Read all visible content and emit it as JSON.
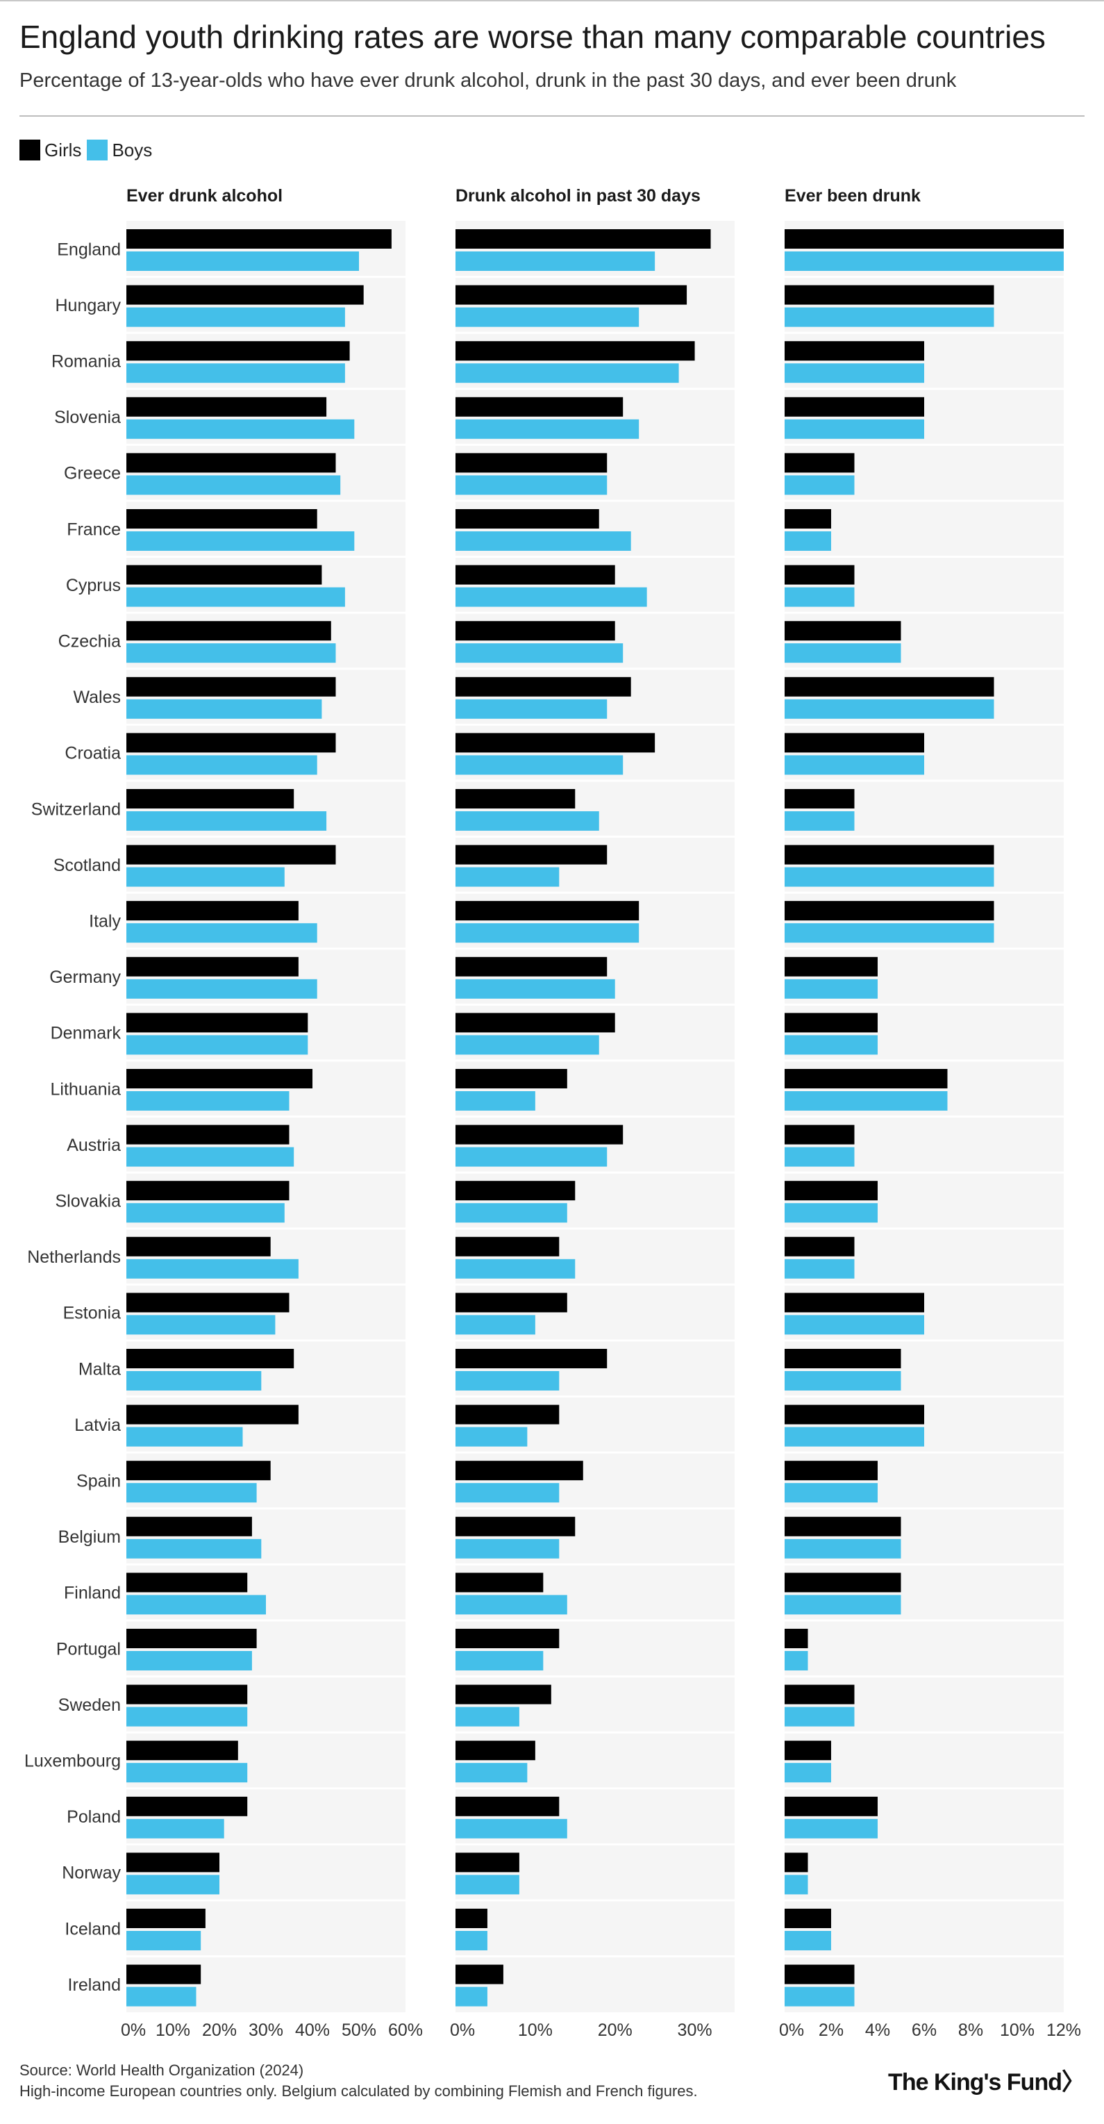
{
  "title": "England youth drinking rates are worse than many comparable countries",
  "subtitle": "Percentage of 13-year-olds who have ever drunk alcohol, drunk in the past 30 days, and ever been drunk",
  "legend": [
    {
      "label": "Girls",
      "color": "#000000"
    },
    {
      "label": "Boys",
      "color": "#44bfe9"
    }
  ],
  "footer": {
    "source": "Source: World Health Organization (2024)",
    "note": "High-income European countries only. Belgium calculated by combining Flemish and French figures."
  },
  "logo": "The King's Fund",
  "logo_symbol": "〉",
  "chart_data": {
    "type": "bar",
    "orientation": "horizontal",
    "categories": [
      "England",
      "Hungary",
      "Romania",
      "Slovenia",
      "Greece",
      "France",
      "Cyprus",
      "Czechia",
      "Wales",
      "Croatia",
      "Switzerland",
      "Scotland",
      "Italy",
      "Germany",
      "Denmark",
      "Lithuania",
      "Austria",
      "Slovakia",
      "Netherlands",
      "Estonia",
      "Malta",
      "Latvia",
      "Spain",
      "Belgium",
      "Finland",
      "Portugal",
      "Sweden",
      "Luxembourg",
      "Poland",
      "Norway",
      "Iceland",
      "Ireland"
    ],
    "panels": [
      {
        "title": "Ever drunk alcohol",
        "xlim": [
          0,
          60
        ],
        "ticks": [
          "0%",
          "10%",
          "20%",
          "30%",
          "40%",
          "50%",
          "60%"
        ],
        "series": [
          {
            "name": "Girls",
            "values": [
              57,
              51,
              48,
              43,
              45,
              41,
              42,
              44,
              45,
              45,
              36,
              45,
              37,
              37,
              39,
              40,
              35,
              35,
              31,
              35,
              36,
              37,
              31,
              27,
              26,
              28,
              26,
              24,
              26,
              20,
              17,
              16
            ]
          },
          {
            "name": "Boys",
            "values": [
              50,
              47,
              47,
              49,
              46,
              49,
              47,
              45,
              42,
              41,
              43,
              34,
              41,
              41,
              39,
              35,
              36,
              34,
              37,
              32,
              29,
              25,
              28,
              29,
              30,
              27,
              26,
              26,
              21,
              20,
              16,
              15
            ]
          }
        ]
      },
      {
        "title": "Drunk alcohol in past 30 days",
        "xlim": [
          0,
          35
        ],
        "ticks": [
          "0%",
          "10%",
          "20%",
          "30%"
        ],
        "series": [
          {
            "name": "Girls",
            "values": [
              32,
              29,
              30,
              21,
              19,
              18,
              20,
              20,
              22,
              25,
              15,
              19,
              23,
              19,
              20,
              14,
              21,
              15,
              13,
              14,
              19,
              13,
              16,
              15,
              11,
              13,
              12,
              10,
              13,
              8,
              4,
              6
            ]
          },
          {
            "name": "Boys",
            "values": [
              25,
              23,
              28,
              23,
              19,
              22,
              24,
              21,
              19,
              21,
              18,
              13,
              23,
              20,
              18,
              10,
              19,
              14,
              15,
              10,
              13,
              9,
              13,
              13,
              14,
              11,
              8,
              9,
              14,
              8,
              4,
              4
            ]
          }
        ]
      },
      {
        "title": "Ever been drunk",
        "xlim": [
          0,
          12
        ],
        "ticks": [
          "0%",
          "2%",
          "4%",
          "6%",
          "8%",
          "10%",
          "12%"
        ],
        "series": [
          {
            "name": "Girls",
            "values": [
              12,
              9,
              6,
              6,
              3,
              2,
              3,
              5,
              9,
              6,
              3,
              9,
              9,
              4,
              4,
              7,
              3,
              4,
              3,
              6,
              5,
              6,
              4,
              5,
              5,
              1,
              3,
              2,
              4,
              1,
              2,
              3
            ]
          },
          {
            "name": "Boys",
            "values": [
              12,
              9,
              6,
              6,
              3,
              2,
              3,
              5,
              9,
              6,
              3,
              9,
              9,
              4,
              4,
              7,
              3,
              4,
              3,
              6,
              5,
              6,
              4,
              5,
              5,
              1,
              3,
              2,
              4,
              1,
              2,
              3
            ]
          }
        ]
      }
    ]
  }
}
